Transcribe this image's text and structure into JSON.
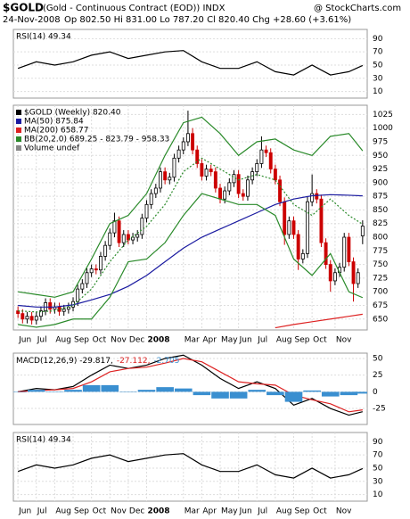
{
  "header": {
    "symbol": "$GOLD",
    "name": "(Gold - Continuous Contract (EOD)) INDX",
    "source": "@ StockCharts.com",
    "date": "24-Nov-2008",
    "quote": "Op 802.50 Hi 831.00 Lo 787.20 Cl 820.40 Chg +28.60 (+3.61%)"
  },
  "chart_data": [
    {
      "type": "line",
      "title": "RSI(14) 49.34",
      "xlim": [
        -1,
        76
      ],
      "ylim": [
        0,
        104
      ],
      "yticks": [
        90,
        70,
        50,
        30,
        10
      ],
      "grid": true,
      "series": [
        {
          "color": "#000000",
          "x": [
            0,
            4,
            8,
            12,
            16,
            20,
            24,
            28,
            32,
            36,
            40,
            44,
            48,
            52,
            56,
            60,
            64,
            68,
            72,
            75
          ],
          "values": [
            45,
            55,
            50,
            55,
            65,
            70,
            60,
            65,
            70,
            72,
            55,
            45,
            45,
            55,
            40,
            35,
            50,
            35,
            40,
            49.34
          ]
        }
      ]
    },
    {
      "type": "candlestick",
      "xlim": [
        -1,
        76
      ],
      "ylim": [
        630,
        1042
      ],
      "grid": true,
      "yticks": [
        650,
        675,
        700,
        725,
        750,
        775,
        800,
        825,
        850,
        875,
        900,
        925,
        950,
        975,
        1000,
        1025
      ],
      "xticks": [
        {
          "value": 0,
          "label": "Jun"
        },
        {
          "value": 4,
          "label": "Jul"
        },
        {
          "value": 8,
          "label": "Aug"
        },
        {
          "value": 12,
          "label": "Sep"
        },
        {
          "value": 16,
          "label": "Oct"
        },
        {
          "value": 20,
          "label": "Nov"
        },
        {
          "value": 24,
          "label": "Dec"
        },
        {
          "value": 28,
          "label": "2008"
        },
        {
          "value": 36,
          "label": "Mar"
        },
        {
          "value": 40,
          "label": "Apr"
        },
        {
          "value": 44,
          "label": "May"
        },
        {
          "value": 48,
          "label": "Jun"
        },
        {
          "value": 52,
          "label": "Jul"
        },
        {
          "value": 56,
          "label": "Aug"
        },
        {
          "value": 60,
          "label": "Sep"
        },
        {
          "value": 64,
          "label": "Oct"
        },
        {
          "value": 69,
          "label": "Nov"
        }
      ],
      "candles": {
        "name": "$GOLD (Weekly) 820.40",
        "up_color": "#000000",
        "down_color": "#cc0000",
        "x": [
          0,
          1,
          2,
          3,
          4,
          5,
          6,
          7,
          8,
          9,
          10,
          11,
          12,
          13,
          14,
          15,
          16,
          17,
          18,
          19,
          20,
          21,
          22,
          23,
          24,
          25,
          26,
          27,
          28,
          29,
          30,
          31,
          32,
          33,
          34,
          35,
          36,
          37,
          38,
          39,
          40,
          41,
          42,
          43,
          44,
          45,
          46,
          47,
          48,
          49,
          50,
          51,
          52,
          53,
          54,
          55,
          56,
          57,
          58,
          59,
          60,
          61,
          62,
          63,
          64,
          65,
          66,
          67,
          68,
          69,
          70,
          71,
          72,
          73,
          74,
          75
        ],
        "open": [
          665,
          660,
          650,
          655,
          648,
          655,
          665,
          680,
          668,
          672,
          664,
          668,
          672,
          682,
          705,
          715,
          735,
          742,
          740,
          765,
          785,
          808,
          830,
          790,
          805,
          795,
          800,
          805,
          835,
          860,
          880,
          890,
          920,
          905,
          910,
          945,
          960,
          975,
          990,
          960,
          935,
          912,
          925,
          920,
          890,
          870,
          885,
          900,
          915,
          880,
          875,
          905,
          920,
          935,
          960,
          955,
          925,
          905,
          865,
          805,
          830,
          805,
          760,
          770,
          865,
          880,
          870,
          790,
          750,
          720,
          735,
          745,
          800,
          755,
          715,
          802.5
        ],
        "high": [
          673,
          668,
          663,
          663,
          663,
          673,
          688,
          688,
          680,
          680,
          676,
          680,
          690,
          713,
          723,
          743,
          750,
          750,
          773,
          793,
          816,
          845,
          838,
          813,
          813,
          808,
          813,
          843,
          868,
          888,
          898,
          928,
          928,
          918,
          953,
          968,
          983,
          1032,
          1000,
          968,
          943,
          933,
          933,
          928,
          898,
          893,
          908,
          923,
          923,
          888,
          913,
          928,
          943,
          985,
          968,
          963,
          933,
          913,
          873,
          838,
          838,
          813,
          778,
          875,
          915,
          888,
          878,
          798,
          758,
          743,
          753,
          808,
          808,
          763,
          743,
          831
        ],
        "low": [
          652,
          642,
          642,
          640,
          640,
          647,
          657,
          660,
          660,
          656,
          656,
          660,
          664,
          674,
          697,
          707,
          727,
          732,
          732,
          757,
          777,
          800,
          782,
          782,
          787,
          787,
          792,
          797,
          827,
          852,
          872,
          882,
          897,
          897,
          902,
          937,
          952,
          967,
          952,
          927,
          904,
          904,
          912,
          882,
          862,
          862,
          877,
          892,
          872,
          867,
          867,
          897,
          912,
          927,
          947,
          917,
          897,
          857,
          786,
          797,
          797,
          740,
          752,
          762,
          857,
          862,
          782,
          742,
          700,
          712,
          727,
          737,
          747,
          682,
          707,
          787.2
        ],
        "close": [
          660,
          650,
          655,
          648,
          655,
          665,
          680,
          668,
          672,
          664,
          668,
          672,
          682,
          705,
          715,
          735,
          742,
          740,
          765,
          785,
          808,
          830,
          790,
          805,
          795,
          800,
          805,
          835,
          860,
          880,
          890,
          920,
          905,
          910,
          945,
          960,
          975,
          990,
          960,
          935,
          912,
          925,
          920,
          890,
          870,
          885,
          900,
          915,
          880,
          875,
          905,
          920,
          935,
          960,
          955,
          925,
          905,
          865,
          805,
          830,
          805,
          760,
          770,
          865,
          880,
          870,
          790,
          750,
          720,
          735,
          745,
          800,
          755,
          715,
          735,
          820.4
        ]
      },
      "series": [
        {
          "name": "MA(50) 875.84",
          "color": "#1a1aa0",
          "x": [
            0,
            4,
            8,
            12,
            16,
            20,
            24,
            28,
            32,
            36,
            40,
            44,
            48,
            52,
            56,
            60,
            64,
            68,
            72,
            75
          ],
          "values": [
            675,
            672,
            672,
            676,
            685,
            695,
            710,
            730,
            755,
            780,
            800,
            815,
            830,
            845,
            860,
            870,
            876,
            878,
            877,
            875.84
          ]
        },
        {
          "name": "MA(200) 658.77",
          "color": "#dd2222",
          "x": [
            56,
            60,
            64,
            68,
            72,
            75
          ],
          "values": [
            634,
            640,
            645,
            650,
            655,
            658.77
          ]
        },
        {
          "name": "BB(20,2.0) 689.25 - 823.79 - 958.33",
          "color": "#2a8a2a",
          "x": [
            0,
            4,
            8,
            12,
            16,
            20,
            24,
            28,
            32,
            36,
            40,
            44,
            48,
            52,
            56,
            60,
            64,
            68,
            72,
            75
          ],
          "values": [
            700,
            695,
            690,
            700,
            760,
            825,
            840,
            880,
            950,
            1010,
            1020,
            990,
            950,
            975,
            980,
            960,
            950,
            985,
            990,
            958.33
          ]
        },
        {
          "color": "#2a8a2a",
          "style": "dotted",
          "x": [
            0,
            4,
            8,
            12,
            16,
            20,
            24,
            28,
            32,
            36,
            40,
            44,
            48,
            52,
            56,
            60,
            64,
            68,
            72,
            75
          ],
          "values": [
            665,
            663,
            665,
            675,
            705,
            755,
            795,
            820,
            860,
            920,
            945,
            925,
            905,
            915,
            905,
            860,
            840,
            870,
            840,
            823.79
          ]
        },
        {
          "color": "#2a8a2a",
          "x": [
            0,
            4,
            8,
            12,
            16,
            20,
            24,
            28,
            32,
            36,
            40,
            44,
            48,
            52,
            56,
            60,
            64,
            68,
            72,
            75
          ],
          "values": [
            640,
            635,
            640,
            650,
            650,
            690,
            755,
            760,
            790,
            840,
            880,
            870,
            860,
            860,
            840,
            760,
            730,
            770,
            700,
            689.25
          ]
        }
      ],
      "notes": [
        "Volume undef"
      ]
    },
    {
      "type": "line",
      "xlim": [
        -1,
        76
      ],
      "ylim": [
        -49,
        58
      ],
      "yticks": [
        50,
        25,
        0,
        -25
      ],
      "grid": true,
      "series": [
        {
          "name": "MACD(12,26,9) -29.817,",
          "color": "#000000",
          "x": [
            0,
            4,
            8,
            12,
            16,
            20,
            24,
            28,
            32,
            36,
            40,
            44,
            48,
            52,
            56,
            60,
            64,
            68,
            72,
            75
          ],
          "values": [
            0,
            5,
            3,
            8,
            25,
            40,
            35,
            40,
            50,
            55,
            40,
            20,
            5,
            15,
            5,
            -20,
            -10,
            -25,
            -35,
            -29.817
          ]
        },
        {
          "name": "-27.112,",
          "color": "#dd2222",
          "x": [
            0,
            4,
            8,
            12,
            16,
            20,
            24,
            28,
            32,
            36,
            40,
            44,
            48,
            52,
            56,
            60,
            64,
            68,
            72,
            75
          ],
          "values": [
            0,
            2,
            3,
            5,
            15,
            30,
            35,
            37,
            43,
            50,
            45,
            30,
            15,
            12,
            10,
            -5,
            -12,
            -18,
            -30,
            -27.112
          ]
        },
        {
          "name": "-2.705",
          "color": "#3a8fd0",
          "style": "bar",
          "x": [
            0,
            4,
            8,
            12,
            16,
            20,
            24,
            28,
            32,
            36,
            40,
            44,
            48,
            52,
            56,
            60,
            64,
            68,
            72,
            75
          ],
          "values": [
            0,
            3,
            0,
            3,
            10,
            10,
            0,
            3,
            7,
            5,
            -5,
            -10,
            -10,
            3,
            -5,
            -15,
            2,
            -7,
            -5,
            -2.705
          ]
        }
      ]
    },
    {
      "type": "line",
      "title": "RSI(14) 49.34",
      "xlim": [
        -1,
        76
      ],
      "ylim": [
        0,
        104
      ],
      "yticks": [
        90,
        70,
        50,
        30,
        10
      ],
      "grid": true,
      "xticks": [
        {
          "value": 0,
          "label": "Jun"
        },
        {
          "value": 4,
          "label": "Jul"
        },
        {
          "value": 8,
          "label": "Aug"
        },
        {
          "value": 12,
          "label": "Sep"
        },
        {
          "value": 16,
          "label": "Oct"
        },
        {
          "value": 20,
          "label": "Nov"
        },
        {
          "value": 24,
          "label": "Dec"
        },
        {
          "value": 28,
          "label": "2008"
        },
        {
          "value": 36,
          "label": "Mar"
        },
        {
          "value": 40,
          "label": "Apr"
        },
        {
          "value": 44,
          "label": "May"
        },
        {
          "value": 48,
          "label": "Jun"
        },
        {
          "value": 52,
          "label": "Jul"
        },
        {
          "value": 56,
          "label": "Aug"
        },
        {
          "value": 60,
          "label": "Sep"
        },
        {
          "value": 64,
          "label": "Oct"
        },
        {
          "value": 69,
          "label": "Nov"
        }
      ],
      "series": [
        {
          "color": "#000000",
          "x": [
            0,
            4,
            8,
            12,
            16,
            20,
            24,
            28,
            32,
            36,
            40,
            44,
            48,
            52,
            56,
            60,
            64,
            68,
            72,
            75
          ],
          "values": [
            45,
            55,
            50,
            55,
            65,
            70,
            60,
            65,
            70,
            72,
            55,
            45,
            45,
            55,
            40,
            35,
            50,
            35,
            40,
            49.34
          ]
        }
      ]
    }
  ]
}
